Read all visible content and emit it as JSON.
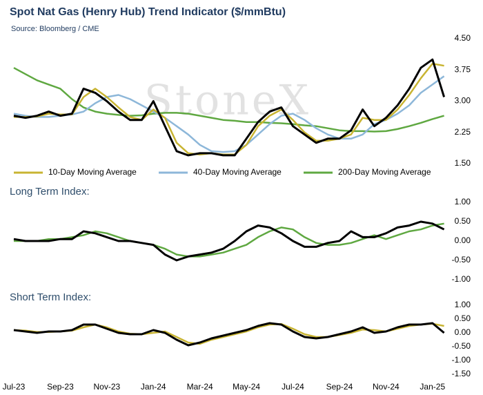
{
  "chart_data": [
    {
      "type": "line",
      "title": "Spot Nat Gas (Henry Hub) Trend Indicator ($/mmBtu)",
      "subtitle": "Source: Bloomberg / CME",
      "watermark": "StoneX",
      "x": [
        0,
        0.5,
        1,
        1.5,
        2,
        2.5,
        3,
        3.5,
        4,
        4.5,
        5,
        5.5,
        6,
        6.5,
        7,
        7.5,
        8,
        8.5,
        9,
        9.5,
        10,
        10.5,
        11,
        11.5,
        12,
        12.5,
        13,
        13.5,
        14,
        14.5,
        15,
        15.5,
        16,
        16.5,
        17,
        17.5,
        18,
        18.5
      ],
      "xlim": [
        0,
        18.6
      ],
      "ylim": [
        1.5,
        4.5
      ],
      "yticks": [
        {
          "value": 4.5,
          "label": "4.50"
        },
        {
          "value": 3.75,
          "label": "3.75"
        },
        {
          "value": 3,
          "label": "3.00"
        },
        {
          "value": 2.25,
          "label": "2.25"
        },
        {
          "value": 1.5,
          "label": "1.50"
        }
      ],
      "series": [
        {
          "color": "#000000",
          "values": [
            2.65,
            2.6,
            2.65,
            2.75,
            2.65,
            2.7,
            3.3,
            3.2,
            3.0,
            2.75,
            2.55,
            2.55,
            3.0,
            2.4,
            1.8,
            1.7,
            1.75,
            1.75,
            1.7,
            1.7,
            2.1,
            2.5,
            2.75,
            2.85,
            2.4,
            2.2,
            2.0,
            2.1,
            2.1,
            2.3,
            2.8,
            2.4,
            2.6,
            2.9,
            3.3,
            3.8,
            4.0,
            3.1
          ]
        },
        {
          "name": "10-Day Moving Average",
          "color": "#c8b432",
          "values": [
            2.62,
            2.62,
            2.63,
            2.7,
            2.68,
            2.68,
            3.1,
            3.3,
            3.1,
            2.85,
            2.62,
            2.55,
            2.8,
            2.6,
            2.0,
            1.75,
            1.72,
            1.75,
            1.72,
            1.72,
            1.95,
            2.4,
            2.65,
            2.8,
            2.55,
            2.25,
            2.05,
            2.05,
            2.1,
            2.2,
            2.6,
            2.55,
            2.55,
            2.8,
            3.15,
            3.55,
            3.9,
            3.85
          ]
        },
        {
          "name": "40-Day Moving Average",
          "color": "#8db7d9",
          "values": [
            2.7,
            2.65,
            2.62,
            2.62,
            2.65,
            2.68,
            2.75,
            2.95,
            3.1,
            3.15,
            3.05,
            2.9,
            2.75,
            2.6,
            2.4,
            2.2,
            1.95,
            1.8,
            1.78,
            1.8,
            1.95,
            2.2,
            2.45,
            2.65,
            2.7,
            2.55,
            2.35,
            2.2,
            2.1,
            2.1,
            2.2,
            2.45,
            2.55,
            2.7,
            2.9,
            3.2,
            3.4,
            3.6
          ]
        },
        {
          "name": "200-Day Moving Average",
          "color": "#5fa841",
          "values": [
            3.8,
            3.65,
            3.5,
            3.4,
            3.3,
            3.05,
            2.85,
            2.75,
            2.7,
            2.67,
            2.65,
            2.66,
            2.7,
            2.72,
            2.72,
            2.7,
            2.65,
            2.6,
            2.55,
            2.53,
            2.5,
            2.5,
            2.48,
            2.47,
            2.45,
            2.42,
            2.4,
            2.35,
            2.3,
            2.28,
            2.28,
            2.27,
            2.28,
            2.33,
            2.4,
            2.48,
            2.57,
            2.65
          ]
        }
      ]
    },
    {
      "type": "line",
      "title": "Long Term Index:",
      "x": [
        0,
        0.5,
        1,
        1.5,
        2,
        2.5,
        3,
        3.5,
        4,
        4.5,
        5,
        5.5,
        6,
        6.5,
        7,
        7.5,
        8,
        8.5,
        9,
        9.5,
        10,
        10.5,
        11,
        11.5,
        12,
        12.5,
        13,
        13.5,
        14,
        14.5,
        15,
        15.5,
        16,
        16.5,
        17,
        17.5,
        18,
        18.5
      ],
      "xlim": [
        0,
        18.6
      ],
      "ylim": [
        -1,
        1
      ],
      "yticks": [
        {
          "value": 1,
          "label": "1.00"
        },
        {
          "value": 0.5,
          "label": "0.50"
        },
        {
          "value": 0,
          "label": "0.00"
        },
        {
          "value": -0.5,
          "label": "-0.50"
        },
        {
          "value": -1,
          "label": "-1.00"
        }
      ],
      "series": [
        {
          "color": "#000000",
          "values": [
            0.05,
            0.0,
            0.0,
            0.0,
            0.05,
            0.05,
            0.25,
            0.2,
            0.1,
            0.0,
            0.0,
            -0.05,
            -0.1,
            -0.35,
            -0.5,
            -0.4,
            -0.35,
            -0.3,
            -0.2,
            0.0,
            0.25,
            0.4,
            0.35,
            0.2,
            0.0,
            -0.15,
            -0.15,
            -0.05,
            0.0,
            0.25,
            0.1,
            0.1,
            0.2,
            0.35,
            0.4,
            0.5,
            0.45,
            0.3
          ]
        },
        {
          "color": "#5fa841",
          "values": [
            0.0,
            0.0,
            0.0,
            0.05,
            0.05,
            0.1,
            0.15,
            0.25,
            0.2,
            0.1,
            0.0,
            -0.05,
            -0.1,
            -0.2,
            -0.35,
            -0.4,
            -0.4,
            -0.35,
            -0.3,
            -0.2,
            -0.1,
            0.1,
            0.25,
            0.35,
            0.3,
            0.1,
            -0.05,
            -0.1,
            -0.1,
            -0.05,
            0.05,
            0.15,
            0.05,
            0.15,
            0.25,
            0.3,
            0.4,
            0.45
          ]
        }
      ]
    },
    {
      "type": "line",
      "title": "Short Term Index:",
      "x": [
        0,
        0.5,
        1,
        1.5,
        2,
        2.5,
        3,
        3.5,
        4,
        4.5,
        5,
        5.5,
        6,
        6.5,
        7,
        7.5,
        8,
        8.5,
        9,
        9.5,
        10,
        10.5,
        11,
        11.5,
        12,
        12.5,
        13,
        13.5,
        14,
        14.5,
        15,
        15.5,
        16,
        16.5,
        17,
        17.5,
        18,
        18.5
      ],
      "xlim": [
        0,
        18.6
      ],
      "xticks": [
        {
          "value": 0,
          "label": "Jul-23"
        },
        {
          "value": 2,
          "label": "Sep-23"
        },
        {
          "value": 4,
          "label": "Nov-23"
        },
        {
          "value": 6,
          "label": "Jan-24"
        },
        {
          "value": 8,
          "label": "Mar-24"
        },
        {
          "value": 10,
          "label": "May-24"
        },
        {
          "value": 12,
          "label": "Jul-24"
        },
        {
          "value": 14,
          "label": "Sep-24"
        },
        {
          "value": 16,
          "label": "Nov-24"
        },
        {
          "value": 18,
          "label": "Jan-25"
        }
      ],
      "ylim": [
        -1.5,
        1
      ],
      "yticks": [
        {
          "value": 1,
          "label": "1.00"
        },
        {
          "value": 0.5,
          "label": "0.50"
        },
        {
          "value": 0,
          "label": "0.00"
        },
        {
          "value": -0.5,
          "label": "-0.50"
        },
        {
          "value": -1,
          "label": "-1.00"
        },
        {
          "value": -1.5,
          "label": "-1.50"
        }
      ],
      "series": [
        {
          "color": "#000000",
          "values": [
            0.1,
            0.05,
            0.0,
            0.05,
            0.05,
            0.1,
            0.3,
            0.3,
            0.15,
            0.0,
            -0.05,
            -0.05,
            0.1,
            0.0,
            -0.25,
            -0.45,
            -0.35,
            -0.2,
            -0.1,
            0.0,
            0.1,
            0.25,
            0.35,
            0.3,
            0.05,
            -0.15,
            -0.2,
            -0.15,
            -0.05,
            0.05,
            0.2,
            0.0,
            0.05,
            0.2,
            0.3,
            0.3,
            0.35,
            0.0
          ]
        },
        {
          "color": "#c8b432",
          "values": [
            0.1,
            0.08,
            0.03,
            0.03,
            0.05,
            0.08,
            0.2,
            0.3,
            0.2,
            0.05,
            -0.03,
            -0.05,
            0.0,
            0.05,
            -0.15,
            -0.35,
            -0.4,
            -0.25,
            -0.15,
            -0.05,
            0.05,
            0.2,
            0.3,
            0.32,
            0.15,
            -0.05,
            -0.15,
            -0.15,
            -0.08,
            0.0,
            0.12,
            0.1,
            0.05,
            0.15,
            0.25,
            0.3,
            0.33,
            0.25
          ]
        }
      ]
    }
  ]
}
